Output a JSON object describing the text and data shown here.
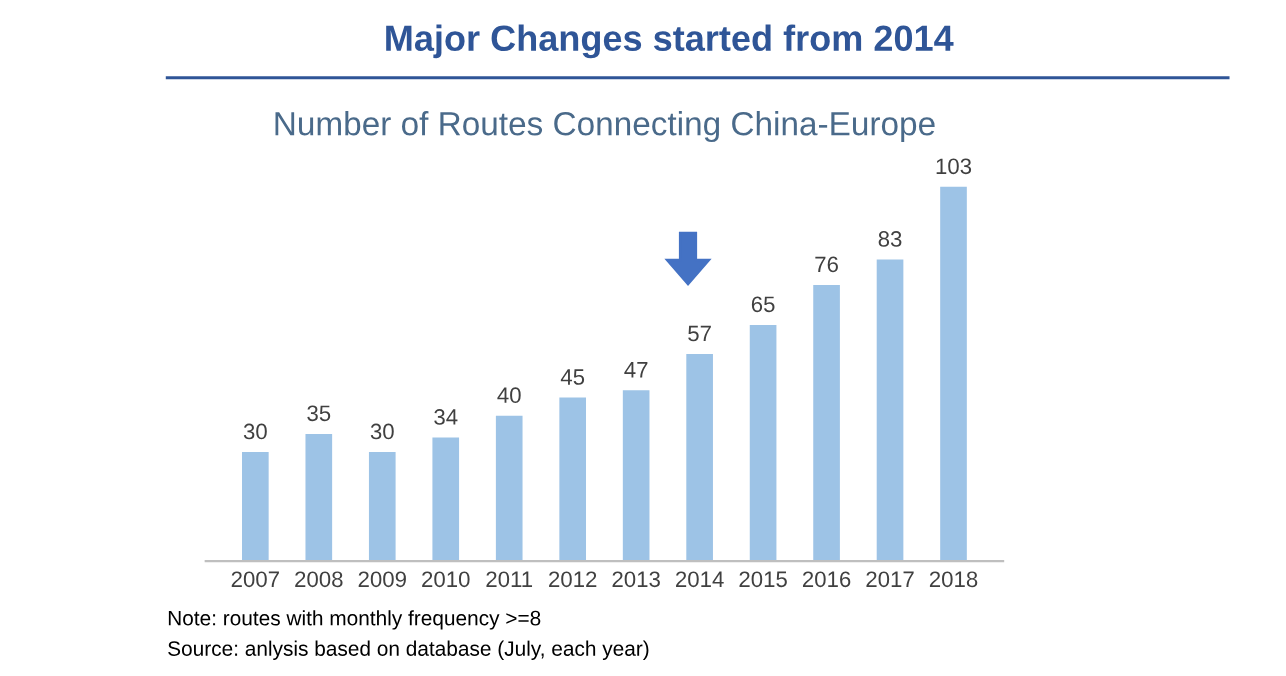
{
  "chart_data": {
    "type": "bar",
    "title": "Major Changes started from 2014",
    "subtitle": "Number of Routes Connecting China-Europe",
    "categories": [
      "2007",
      "2008",
      "2009",
      "2010",
      "2011",
      "2012",
      "2013",
      "2014",
      "2015",
      "2016",
      "2017",
      "2018"
    ],
    "values": [
      30,
      35,
      30,
      34,
      40,
      45,
      47,
      57,
      65,
      76,
      83,
      103
    ],
    "color": "#9dc3e6",
    "data_labels": true,
    "grid": false,
    "legend": false,
    "annotations": [
      "Note: routes with monthly frequency >=8",
      "Source: anlysis based on database (July, each year)"
    ]
  }
}
